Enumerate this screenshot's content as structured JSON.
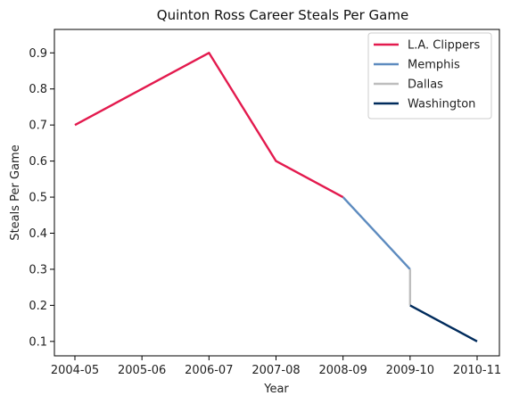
{
  "chart_data": {
    "type": "line",
    "title": "Quinton Ross Career Steals Per Game",
    "xlabel": "Year",
    "ylabel": "Steals Per Game",
    "categories": [
      "2004-05",
      "2005-06",
      "2006-07",
      "2007-08",
      "2008-09",
      "2009-10",
      "2010-11"
    ],
    "ylim": [
      0.06,
      0.965
    ],
    "yticks": [
      "0.1",
      "0.2",
      "0.3",
      "0.4",
      "0.5",
      "0.6",
      "0.7",
      "0.8",
      "0.9"
    ],
    "legend_position": "top-right",
    "grid": false,
    "series": [
      {
        "name": "L.A. Clippers",
        "color": "#E31A4E",
        "x": [
          "2004-05",
          "2006-07",
          "2007-08",
          "2008-09"
        ],
        "values": [
          0.7,
          0.9,
          0.6,
          0.5
        ]
      },
      {
        "name": "Memphis",
        "color": "#5D8BBF",
        "x": [
          "2008-09",
          "2009-10"
        ],
        "values": [
          0.5,
          0.3
        ]
      },
      {
        "name": "Dallas",
        "color": "#BEBEBE",
        "x": [
          "2009-10",
          "2009-10"
        ],
        "values": [
          0.3,
          0.2
        ]
      },
      {
        "name": "Washington",
        "color": "#002B5C",
        "x": [
          "2009-10",
          "2010-11"
        ],
        "values": [
          0.2,
          0.1
        ]
      }
    ]
  }
}
